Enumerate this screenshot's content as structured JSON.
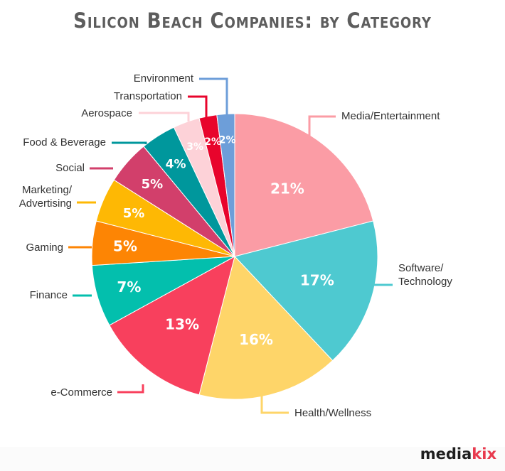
{
  "title": "Silicon Beach Companies: by Category",
  "logo": {
    "part1": "media",
    "part2": "kix"
  },
  "chart_data": {
    "type": "pie",
    "title": "Silicon Beach Companies: by Category",
    "slices": [
      {
        "label": "Media/Entertainment",
        "value": 21,
        "display": "21%",
        "color": "#fb9ca5"
      },
      {
        "label": "Software/\nTechnology",
        "value": 17,
        "display": "17%",
        "color": "#4ec9d0"
      },
      {
        "label": "Health/Wellness",
        "value": 16,
        "display": "16%",
        "color": "#fed569"
      },
      {
        "label": "e-Commerce",
        "value": 13,
        "display": "13%",
        "color": "#f8405d"
      },
      {
        "label": "Finance",
        "value": 7,
        "display": "7%",
        "color": "#03bfad"
      },
      {
        "label": "Gaming",
        "value": 5,
        "display": "5%",
        "color": "#fd8504"
      },
      {
        "label": "Marketing/\nAdvertising",
        "value": 5,
        "display": "5%",
        "color": "#feb804"
      },
      {
        "label": "Social",
        "value": 5,
        "display": "5%",
        "color": "#d23f6b"
      },
      {
        "label": "Food & Beverage",
        "value": 4,
        "display": "4%",
        "color": "#00979c"
      },
      {
        "label": "Aerospace",
        "value": 3,
        "display": "3%",
        "color": "#fdd2d8"
      },
      {
        "label": "Transportation",
        "value": 2,
        "display": "2%",
        "color": "#e8042c"
      },
      {
        "label": "Environment",
        "value": 2,
        "display": "2%",
        "color": "#6d9ed9"
      }
    ]
  }
}
